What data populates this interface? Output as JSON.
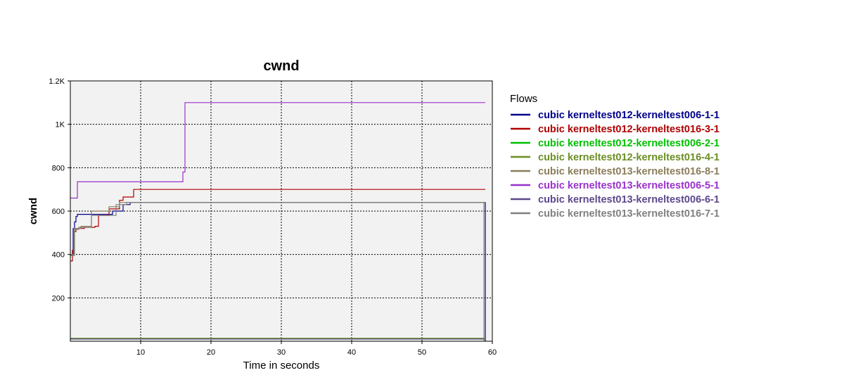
{
  "chart_data": {
    "type": "line",
    "title": "cwnd",
    "xlabel": "Time in seconds",
    "ylabel": "cwnd",
    "xlim": [
      0,
      60
    ],
    "ylim": [
      0,
      1200
    ],
    "xticks": [
      10,
      20,
      30,
      40,
      50,
      60
    ],
    "yticks": [
      200,
      400,
      600,
      800,
      1000,
      1200
    ],
    "ytick_labels": [
      "200",
      "400",
      "600",
      "800",
      "1K",
      "1.2K"
    ],
    "grid": true,
    "legend_position": "right",
    "legend_title": "Flows",
    "series": [
      {
        "name": "cubic kerneltest012-kerneltest006-1-1",
        "color": "#00008b",
        "points": [
          [
            0,
            398
          ],
          [
            0.4,
            398
          ],
          [
            0.4,
            520
          ],
          [
            0.6,
            520
          ],
          [
            0.6,
            550
          ],
          [
            0.8,
            550
          ],
          [
            0.8,
            575
          ],
          [
            1.0,
            575
          ],
          [
            1.0,
            585
          ],
          [
            6.0,
            585
          ],
          [
            6.0,
            600
          ],
          [
            7.5,
            600
          ],
          [
            7.5,
            630
          ],
          [
            8.5,
            630
          ],
          [
            8.5,
            640
          ],
          [
            59,
            640
          ],
          [
            59,
            0
          ]
        ]
      },
      {
        "name": "cubic kerneltest012-kerneltest016-3-1",
        "color": "#b00000",
        "points": [
          [
            0,
            370
          ],
          [
            0.3,
            370
          ],
          [
            0.3,
            420
          ],
          [
            0.5,
            420
          ],
          [
            0.5,
            505
          ],
          [
            0.8,
            505
          ],
          [
            0.8,
            520
          ],
          [
            2.0,
            520
          ],
          [
            2.0,
            525
          ],
          [
            3.5,
            525
          ],
          [
            3.5,
            530
          ],
          [
            4.0,
            530
          ],
          [
            4.0,
            580
          ],
          [
            5.5,
            580
          ],
          [
            5.5,
            610
          ],
          [
            7.0,
            610
          ],
          [
            7.0,
            650
          ],
          [
            7.5,
            650
          ],
          [
            7.5,
            665
          ],
          [
            9.0,
            665
          ],
          [
            9.0,
            700
          ],
          [
            59,
            700
          ]
        ]
      },
      {
        "name": "cubic kerneltest012-kerneltest006-2-1",
        "color": "#00c000",
        "points": [
          [
            0,
            12
          ],
          [
            59,
            12
          ]
        ]
      },
      {
        "name": "cubic kerneltest012-kerneltest016-4-1",
        "color": "#6b8e23",
        "points": [
          [
            0,
            14
          ],
          [
            59,
            14
          ]
        ]
      },
      {
        "name": "cubic kerneltest013-kerneltest016-8-1",
        "color": "#8b7d5a",
        "points": [
          [
            0,
            400
          ],
          [
            0.5,
            400
          ],
          [
            0.5,
            520
          ],
          [
            1.5,
            520
          ],
          [
            1.5,
            530
          ],
          [
            3.0,
            530
          ],
          [
            3.0,
            600
          ],
          [
            5.5,
            600
          ],
          [
            5.5,
            620
          ],
          [
            7.0,
            620
          ],
          [
            7.0,
            640
          ],
          [
            59,
            640
          ]
        ]
      },
      {
        "name": "cubic kerneltest013-kerneltest006-5-1",
        "color": "#9932cc",
        "points": [
          [
            0,
            660
          ],
          [
            1.0,
            660
          ],
          [
            1.0,
            735
          ],
          [
            16.0,
            735
          ],
          [
            16.0,
            780
          ],
          [
            16.3,
            780
          ],
          [
            16.3,
            1100
          ],
          [
            59,
            1100
          ]
        ]
      },
      {
        "name": "cubic kerneltest013-kerneltest006-6-1",
        "color": "#5d478b",
        "points": [
          [
            0,
            10
          ],
          [
            59,
            10
          ]
        ]
      },
      {
        "name": "cubic kerneltest013-kerneltest016-7-1",
        "color": "#808080",
        "points": [
          [
            0,
            395
          ],
          [
            0.6,
            395
          ],
          [
            0.6,
            515
          ],
          [
            1.2,
            515
          ],
          [
            1.2,
            525
          ],
          [
            3.0,
            525
          ],
          [
            3.0,
            580
          ],
          [
            6.5,
            580
          ],
          [
            6.5,
            630
          ],
          [
            8.0,
            630
          ],
          [
            8.0,
            640
          ],
          [
            58.8,
            640
          ],
          [
            58.8,
            0
          ]
        ]
      }
    ]
  }
}
